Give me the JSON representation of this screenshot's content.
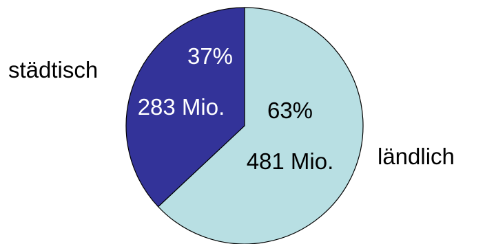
{
  "chart_data": {
    "type": "pie",
    "title": "",
    "slices": [
      {
        "label": "ländlich",
        "percent": 63,
        "value": 481,
        "value_label": "481 Mio.",
        "percent_label": "63%",
        "color": "#b8dfe3",
        "text_color": "#000000"
      },
      {
        "label": "städtisch",
        "percent": 37,
        "value": 283,
        "value_label": "283 Mio.",
        "percent_label": "37%",
        "color": "#333399",
        "text_color": "#ffffff"
      }
    ],
    "start_angle": "12 o'clock",
    "direction": "clockwise",
    "legend": "none (category labels outside slices)"
  }
}
